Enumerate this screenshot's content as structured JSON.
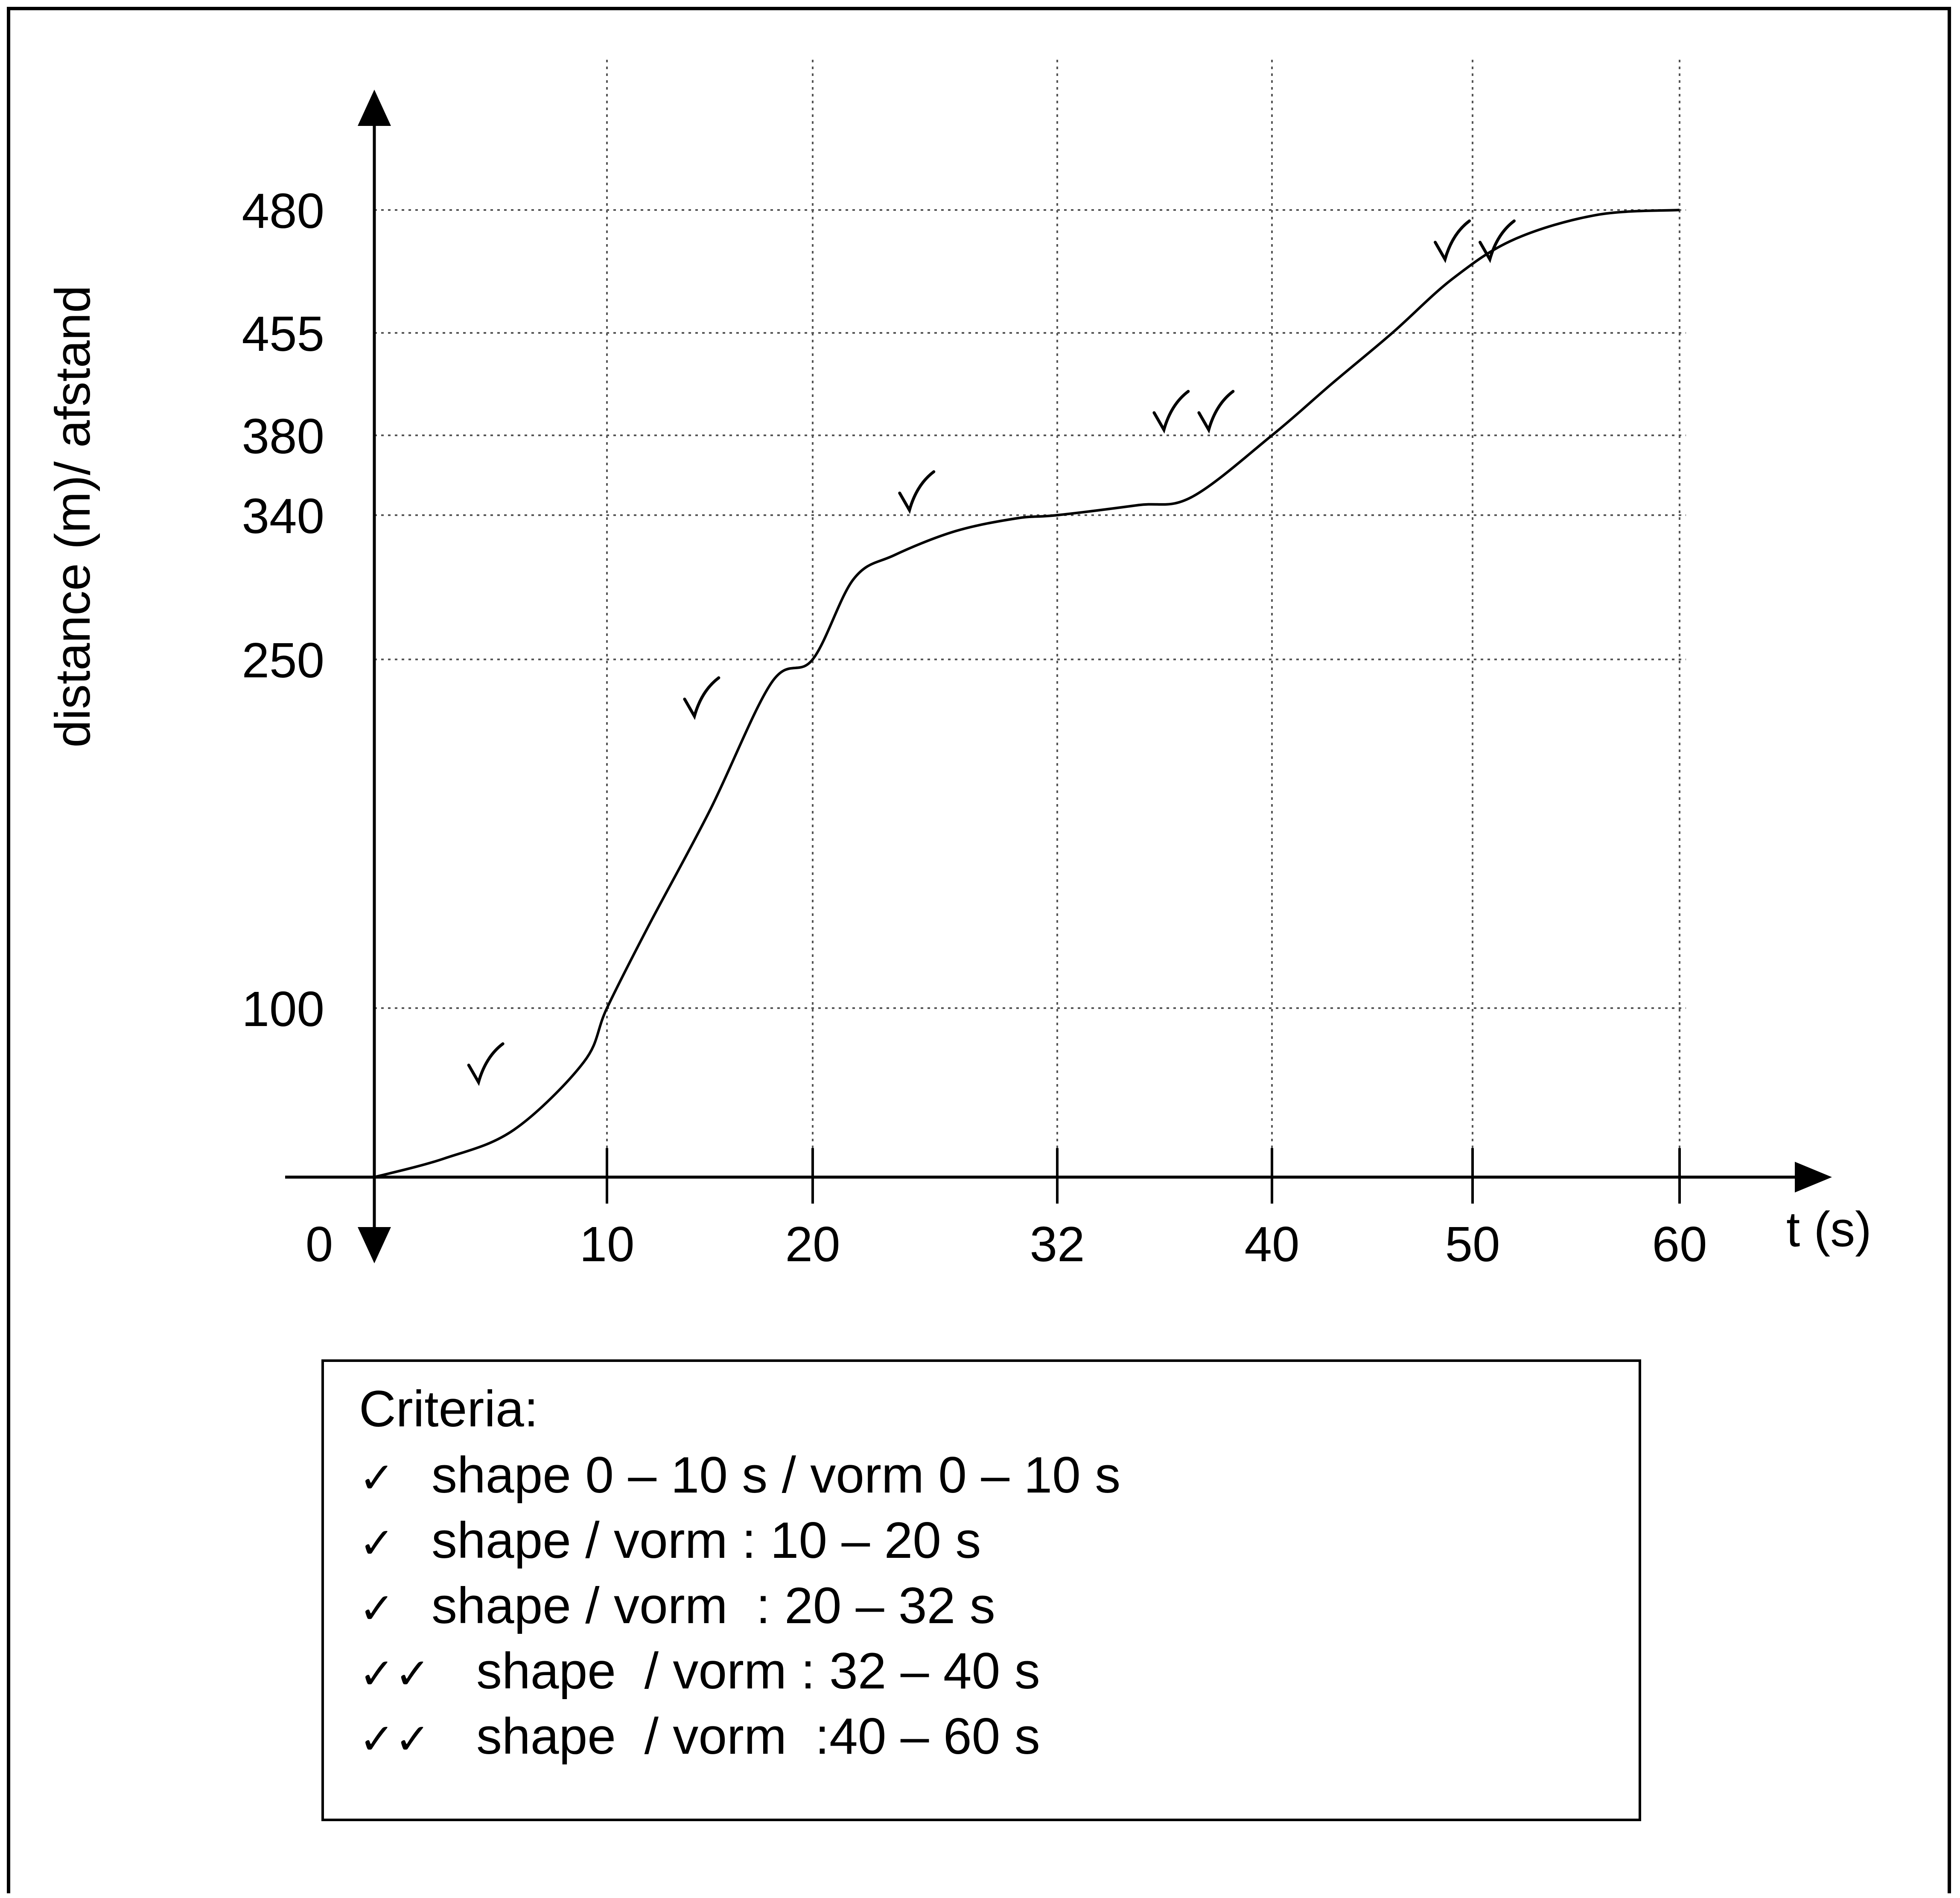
{
  "chart_data": {
    "type": "line",
    "ylabel": "distance (m)/ afstand",
    "xlabel": "t (s)",
    "origin_label": "0",
    "x_ticks": [
      10,
      20,
      32,
      40,
      50,
      60
    ],
    "x_tick_labels": [
      "10",
      "20",
      "32",
      "40",
      "50",
      "60"
    ],
    "y_ticks": [
      100,
      250,
      340,
      380,
      455,
      480
    ],
    "y_tick_labels": [
      "100",
      "250",
      "340",
      "380",
      "455",
      "480"
    ],
    "grid": true,
    "x": [
      0,
      3,
      6,
      9,
      10,
      12,
      15,
      18,
      20,
      22,
      24,
      27,
      30,
      32,
      35,
      37,
      40,
      43,
      46,
      49,
      52,
      56,
      60
    ],
    "y": [
      0,
      11,
      28,
      68,
      100,
      135,
      185,
      240,
      250,
      300,
      315,
      330,
      338,
      340,
      345,
      349,
      380,
      418,
      455,
      466,
      474,
      479,
      480
    ],
    "check_marks": [
      {
        "x": 4.7,
        "y": 65,
        "count": 1
      },
      {
        "x": 14.5,
        "y": 232,
        "count": 1
      },
      {
        "x": 25,
        "y": 350,
        "count": 1
      },
      {
        "x": 37,
        "y": 395,
        "count": 2
      },
      {
        "x": 50,
        "y": 473,
        "count": 2
      }
    ]
  },
  "criteria": {
    "title": "Criteria:",
    "check": "✓",
    "items": [
      {
        "ticks": 1,
        "text": "shape 0 – 10 s / vorm 0 – 10 s"
      },
      {
        "ticks": 1,
        "text": "shape / vorm : 10 – 20 s"
      },
      {
        "ticks": 1,
        "text": "shape / vorm  : 20 – 32 s"
      },
      {
        "ticks": 2,
        "text": "shape  / vorm : 32 – 40 s"
      },
      {
        "ticks": 2,
        "text": "shape  / vorm  :40 – 60 s"
      }
    ]
  }
}
